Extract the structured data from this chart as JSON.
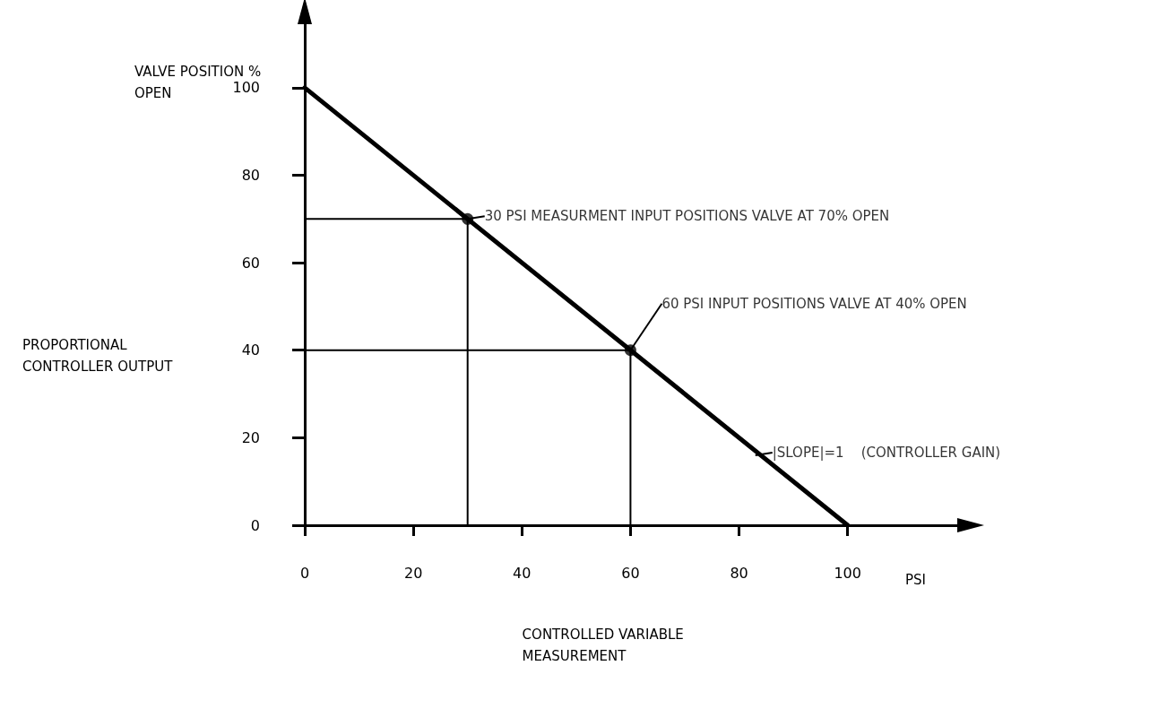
{
  "chart_data": {
    "type": "line",
    "xlabel": "CONTROLLED VARIABLE MEASUREMENT",
    "ylabel": "PROPORTIONAL CONTROLLER OUTPUT",
    "xlim": [
      0,
      123
    ],
    "ylim": [
      0,
      118
    ],
    "xticks": [
      0,
      20,
      40,
      60,
      80,
      100
    ],
    "yticks": [
      0,
      20,
      40,
      60,
      80,
      100
    ],
    "series": [
      {
        "type": "line",
        "x": [
          0,
          100
        ],
        "values": [
          100,
          0
        ],
        "color": "#000000"
      },
      {
        "type": "line",
        "x": [
          0,
          30,
          30
        ],
        "values": [
          70,
          70,
          0
        ],
        "color": "#000000"
      },
      {
        "type": "line",
        "x": [
          0,
          60,
          60
        ],
        "values": [
          40,
          40,
          0
        ],
        "color": "#000000"
      },
      {
        "type": "scatter",
        "x": [
          30,
          60
        ],
        "values": [
          70,
          40
        ],
        "color": "#000000",
        "marker": "circle"
      }
    ],
    "annotations": [
      "VALVE POSITION % OPEN",
      "PSI",
      {
        "text": "30 PSI MEASURMENT INPUT POSITIONS VALVE AT 70% OPEN",
        "x": 30,
        "y": 70
      },
      {
        "text": "60 PSI INPUT POSITIONS VALVE AT 40% OPEN",
        "x": 60,
        "y": 40
      },
      {
        "text": "|SLOPE|=1    (CONTROLLER GAIN)",
        "x": 83,
        "y": 16
      }
    ]
  }
}
